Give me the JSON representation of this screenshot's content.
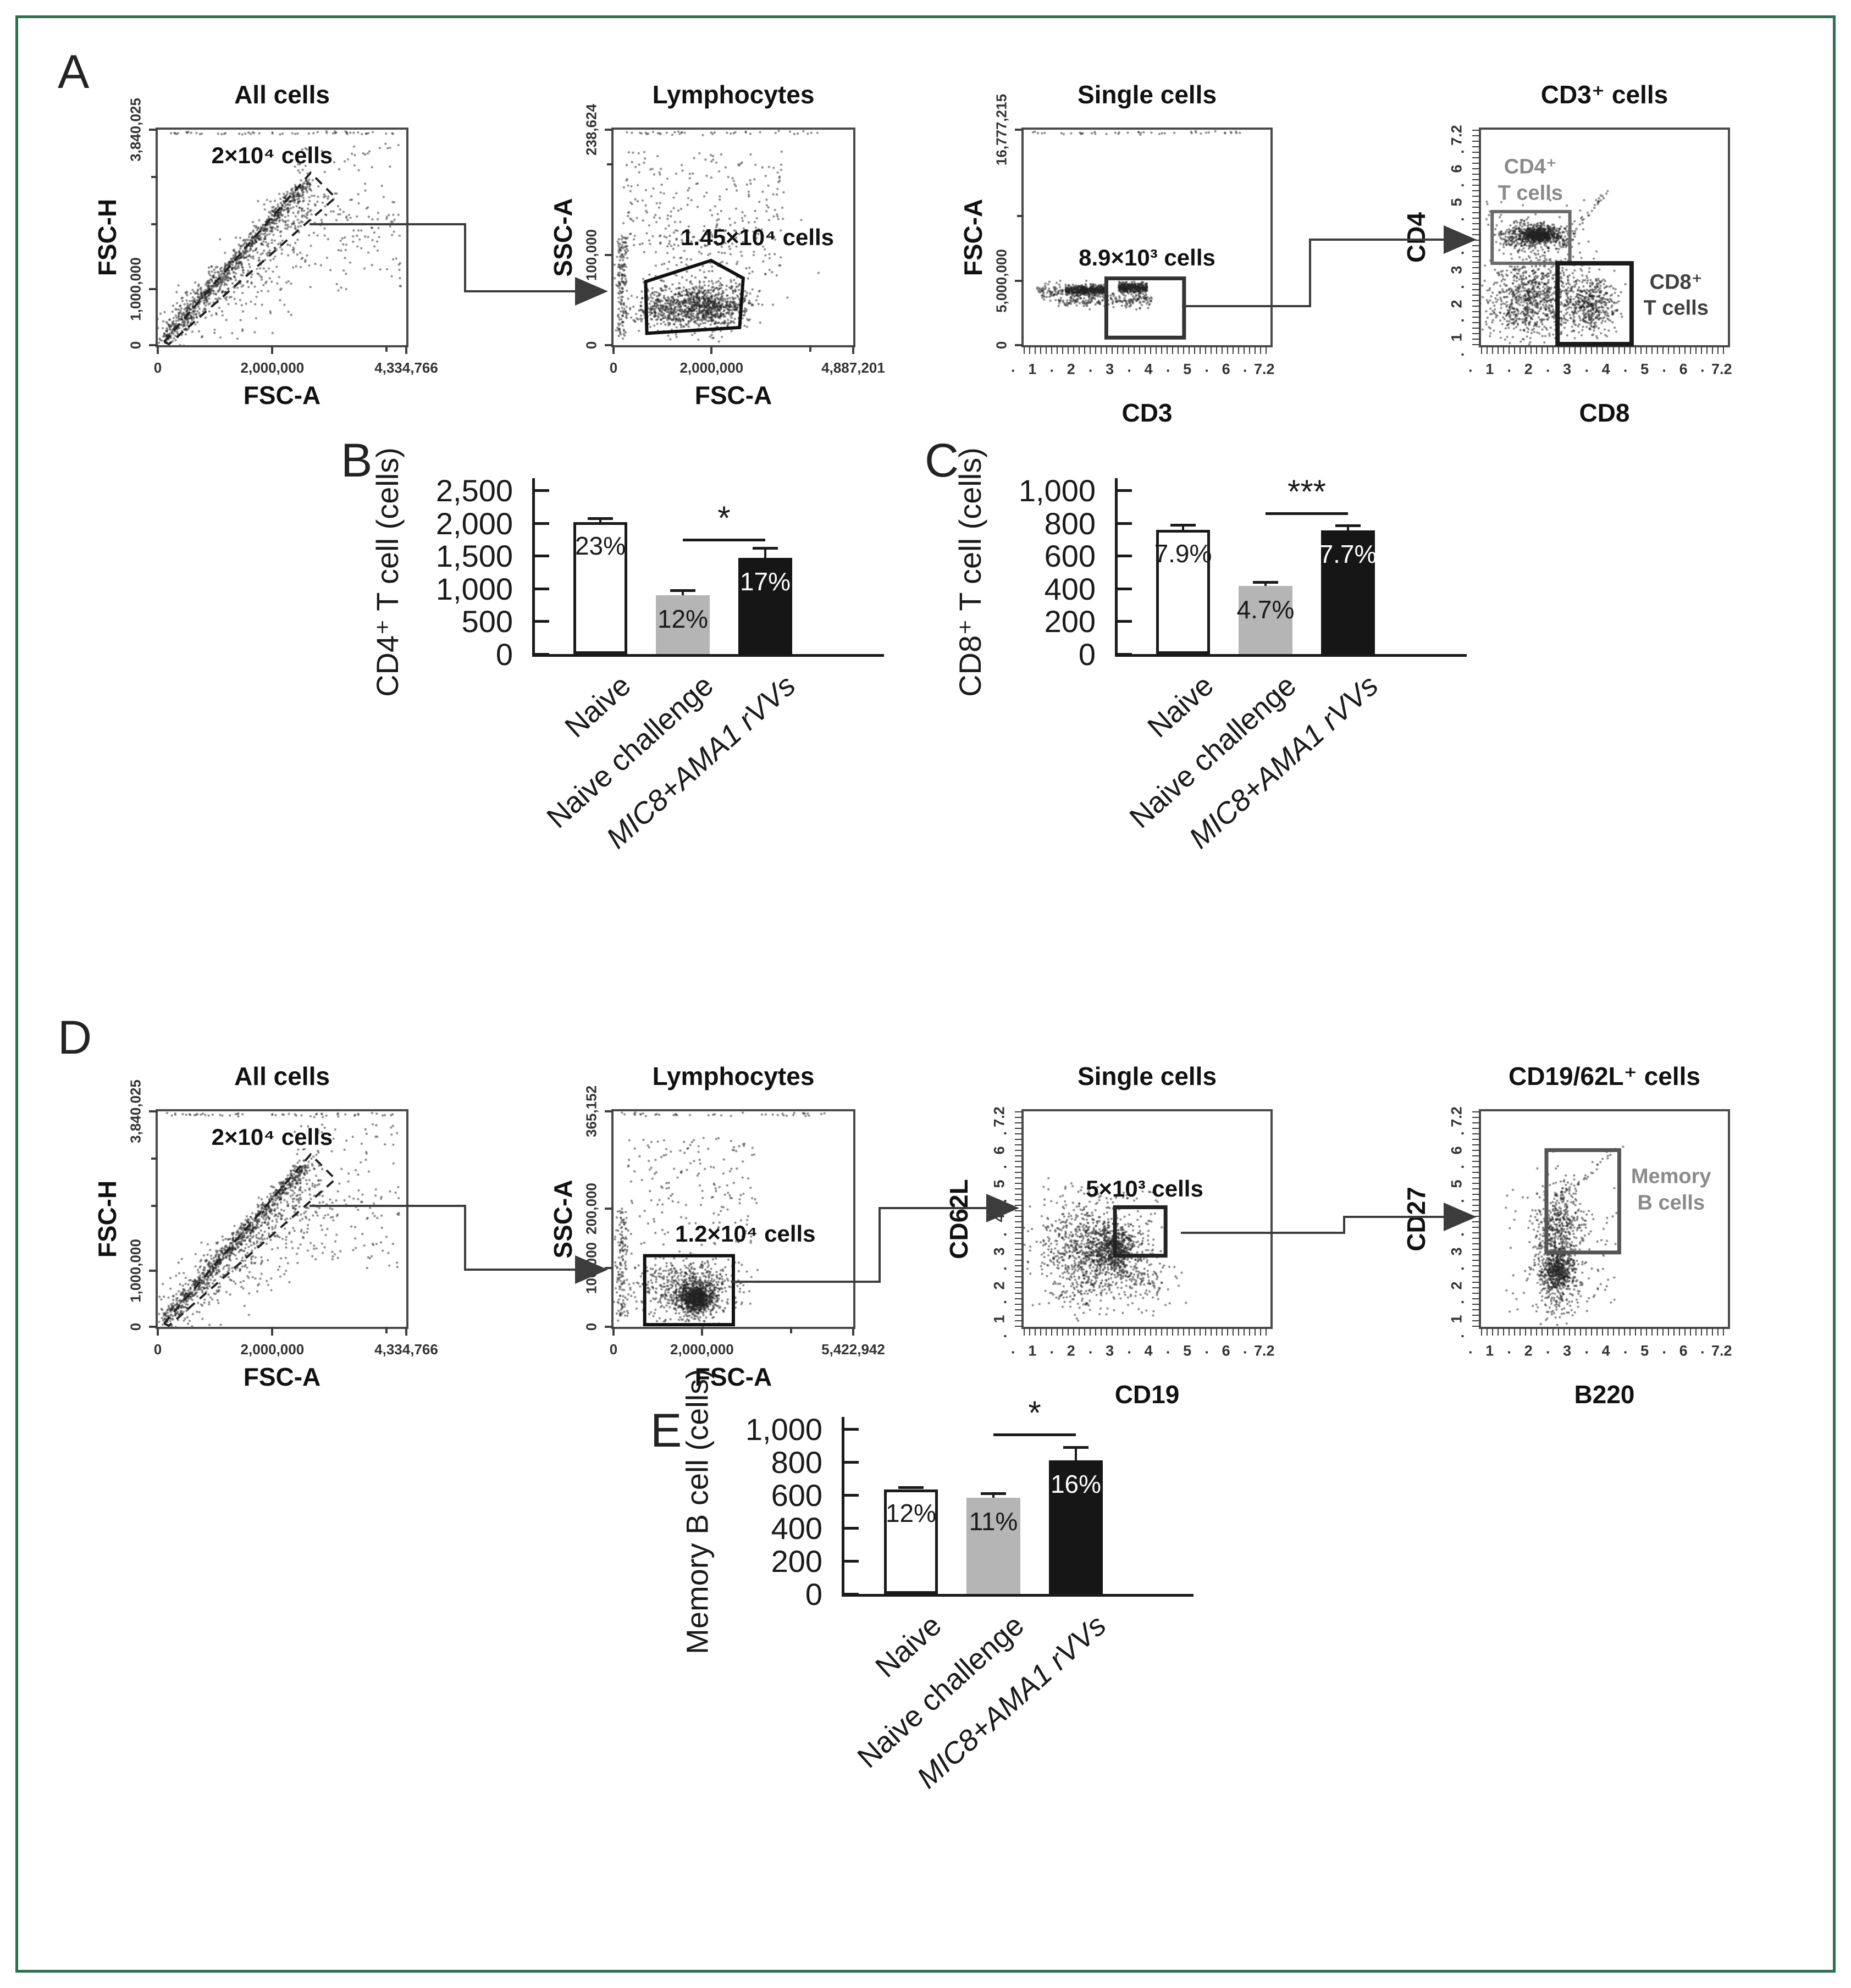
{
  "panel_letters": [
    "A",
    "B",
    "C",
    "D",
    "E"
  ],
  "flow_plots": [
    {
      "title": "All cells",
      "xlabel": "FSC-A",
      "ylabel": "FSC-H",
      "gate_label": "2×10⁴ cells",
      "xticks": [
        {
          "label": "0",
          "f": 0
        },
        {
          "label": "2,000,000",
          "f": 0.461
        },
        {
          "label": "4,334,766",
          "f": 1
        }
      ],
      "yticks": [
        {
          "label": "0",
          "f": 0
        },
        {
          "label": "1,000,000",
          "f": 0.26
        },
        {
          "label": "3,840,025",
          "f": 1
        }
      ]
    },
    {
      "title": "Lymphocytes",
      "xlabel": "FSC-A",
      "ylabel": "SSC-A",
      "gate_label": "1.45×10⁴ cells",
      "xticks": [
        {
          "label": "0",
          "f": 0
        },
        {
          "label": "2,000,000",
          "f": 0.409
        },
        {
          "label": "4,887,201",
          "f": 1
        }
      ],
      "yticks": [
        {
          "label": "0",
          "f": 0
        },
        {
          "label": "100,000",
          "f": 0.419
        },
        {
          "label": "238,624",
          "f": 1
        }
      ]
    },
    {
      "title": "Single cells",
      "xlabel": "CD3",
      "ylabel": "FSC-A",
      "gate_label": "8.9×10³ cells",
      "xlog": [
        "1",
        "2",
        "3",
        "4",
        "5",
        "6",
        "7.2"
      ],
      "yticks": [
        {
          "label": "0",
          "f": 0
        },
        {
          "label": "5,000,000",
          "f": 0.298
        },
        {
          "label": "16,777,215",
          "f": 1
        }
      ]
    },
    {
      "title": "CD3⁺ cells",
      "xlabel": "CD8",
      "ylabel": "CD4",
      "xlog": [
        "1",
        "2",
        "3",
        "4",
        "5",
        "6",
        "7.2"
      ],
      "ylog": [
        "1",
        "2",
        "3",
        "4",
        "5",
        "6",
        "7.2"
      ],
      "annotations": [
        {
          "line1": "CD4⁺",
          "line2": "T cells"
        },
        {
          "line1": "CD8⁺",
          "line2": "T cells"
        }
      ]
    },
    {
      "title": "All cells",
      "xlabel": "FSC-A",
      "ylabel": "FSC-H",
      "gate_label": "2×10⁴ cells",
      "xticks": [
        {
          "label": "0",
          "f": 0
        },
        {
          "label": "2,000,000",
          "f": 0.461
        },
        {
          "label": "4,334,766",
          "f": 1
        }
      ],
      "yticks": [
        {
          "label": "0",
          "f": 0
        },
        {
          "label": "1,000,000",
          "f": 0.26
        },
        {
          "label": "3,840,025",
          "f": 1
        }
      ]
    },
    {
      "title": "Lymphocytes",
      "xlabel": "FSC-A",
      "ylabel": "SSC-A",
      "gate_label": "1.2×10⁴ cells",
      "xticks": [
        {
          "label": "0",
          "f": 0
        },
        {
          "label": "2,000,000",
          "f": 0.369
        },
        {
          "label": "5,422,942",
          "f": 1
        }
      ],
      "yticks": [
        {
          "label": "0",
          "f": 0
        },
        {
          "label": "100,000",
          "f": 0.274
        },
        {
          "label": "200,000",
          "f": 0.548
        },
        {
          "label": "365,152",
          "f": 1
        }
      ]
    },
    {
      "title": "Single cells",
      "xlabel": "CD19",
      "ylabel": "CD62L",
      "gate_label": "5×10³ cells",
      "xlog": [
        "1",
        "2",
        "3",
        "4",
        "5",
        "6",
        "7.2"
      ],
      "ylog": [
        "1",
        "2",
        "3",
        "4",
        "5",
        "6",
        "7.2"
      ]
    },
    {
      "title": "CD19/62L⁺ cells",
      "xlabel": "B220",
      "ylabel": "CD27",
      "xlog": [
        "1",
        "2",
        "3",
        "4",
        "5",
        "6",
        "7.2"
      ],
      "ylog": [
        "1",
        "2",
        "3",
        "4",
        "5",
        "6",
        "7.2"
      ],
      "annotations": [
        {
          "line1": "Memory",
          "line2": "B cells"
        }
      ]
    }
  ],
  "chart_data": [
    {
      "type": "bar",
      "panel": "B",
      "ylabel": "CD4⁺ T cell (cells)",
      "categories": [
        "Naive",
        "Naive challenge",
        "MIC8+AMA1 rVVs"
      ],
      "values": [
        2010,
        900,
        1470
      ],
      "errors": [
        60,
        70,
        150
      ],
      "bar_labels": [
        "23%",
        "12%",
        "17%"
      ],
      "ylim": [
        0,
        2500
      ],
      "ytick_values": [
        0,
        500,
        1000,
        1500,
        2000,
        2500
      ],
      "ytick_labels": [
        "0",
        "500",
        "1,000",
        "1,500",
        "2,000",
        "2,500"
      ],
      "significance": {
        "between": [
          "Naive challenge",
          "MIC8+AMA1 rVVs"
        ],
        "label": "*",
        "line_y": 1760
      },
      "bar_colors": [
        "#ffffff",
        "#b5b5b5",
        "#161616"
      ],
      "label_colors": [
        "#1a1a1a",
        "#1a1a1a",
        "#ffffff"
      ],
      "italic_categories": [
        false,
        false,
        true
      ]
    },
    {
      "type": "bar",
      "panel": "C",
      "ylabel": "CD8⁺ T cell (cells)",
      "categories": [
        "Naive",
        "Naive challenge",
        "MIC8+AMA1 rVVs"
      ],
      "values": [
        760,
        415,
        755
      ],
      "errors": [
        30,
        25,
        30
      ],
      "bar_labels": [
        "7.9%",
        "4.7%",
        "7.7%"
      ],
      "ylim": [
        0,
        1000
      ],
      "ytick_values": [
        0,
        200,
        400,
        600,
        800,
        1000
      ],
      "ytick_labels": [
        "0",
        "200",
        "400",
        "600",
        "800",
        "1,000"
      ],
      "significance": {
        "between": [
          "Naive challenge",
          "MIC8+AMA1 rVVs"
        ],
        "label": "***",
        "line_y": 865
      },
      "bar_colors": [
        "#ffffff",
        "#b5b5b5",
        "#161616"
      ],
      "label_colors": [
        "#1a1a1a",
        "#1a1a1a",
        "#ffffff"
      ],
      "italic_categories": [
        false,
        false,
        true
      ]
    },
    {
      "type": "bar",
      "panel": "E",
      "ylabel": "Memory B cell (cells)",
      "categories": [
        "Naive",
        "Naive challenge",
        "MIC8+AMA1 rVVs"
      ],
      "values": [
        635,
        585,
        810
      ],
      "errors": [
        12,
        25,
        80
      ],
      "bar_labels": [
        "12%",
        "11%",
        "16%"
      ],
      "ylim": [
        0,
        1000
      ],
      "ytick_values": [
        0,
        200,
        400,
        600,
        800,
        1000
      ],
      "ytick_labels": [
        "0",
        "200",
        "400",
        "600",
        "800",
        "1,000"
      ],
      "significance": {
        "between": [
          "Naive challenge",
          "MIC8+AMA1 rVVs"
        ],
        "label": "*",
        "line_y": 975
      },
      "bar_colors": [
        "#ffffff",
        "#b5b5b5",
        "#161616"
      ],
      "label_colors": [
        "#1a1a1a",
        "#1a1a1a",
        "#ffffff"
      ],
      "italic_categories": [
        false,
        false,
        true
      ]
    }
  ],
  "colors": {
    "frame_green": "#2d6e4f",
    "gate_gray": "#8a8a8a",
    "ink": "#1a1a1a"
  }
}
